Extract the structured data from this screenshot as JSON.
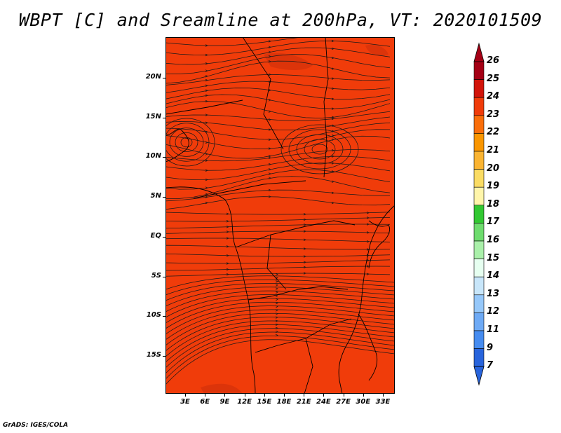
{
  "title": "WBPT [C] and Sreamline at 200hPa, VT: 2020101509",
  "footer": "GrADS: IGES/COLA",
  "map": {
    "lat_labels": [
      "20N",
      "15N",
      "10N",
      "5N",
      "EQ",
      "5S",
      "10S",
      "15S"
    ],
    "lon_labels": [
      "3E",
      "6E",
      "9E",
      "12E",
      "15E",
      "18E",
      "21E",
      "24E",
      "27E",
      "30E",
      "33E"
    ],
    "field_color": "#f03c0a",
    "streamline_color": "#1a1a1a"
  },
  "colorbar": {
    "labels": [
      "26",
      "25",
      "24",
      "23",
      "22",
      "21",
      "20",
      "19",
      "18",
      "17",
      "16",
      "15",
      "14",
      "13",
      "12",
      "11",
      "9",
      "7"
    ],
    "colors": [
      "#a50015",
      "#d2140a",
      "#f03c0a",
      "#fa6e0a",
      "#fa9600",
      "#fab432",
      "#fadc64",
      "#fff5aa",
      "#32c832",
      "#6edc6e",
      "#aaf0aa",
      "#e6fff0",
      "#c8e6fa",
      "#96c8fa",
      "#6eaaf5",
      "#468cf0",
      "#2864dc"
    ]
  }
}
